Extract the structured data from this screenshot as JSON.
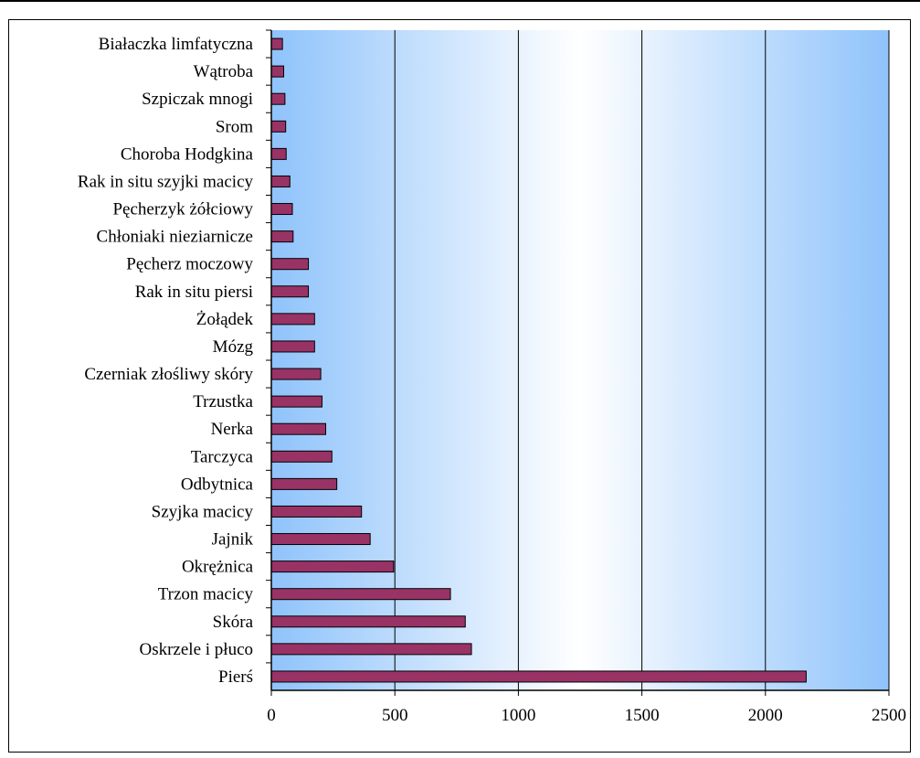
{
  "chart_data": {
    "type": "bar",
    "orientation": "horizontal",
    "categories": [
      "Białaczka limfatyczna",
      "Wątroba",
      "Szpiczak mnogi",
      "Srom",
      "Choroba Hodgkina",
      "Rak in situ szyjki macicy",
      "Pęcherzyk żółciowy",
      "Chłoniaki nieziarnicze",
      "Pęcherz moczowy",
      "Rak in situ piersi",
      "Żołądek",
      "Mózg",
      "Czerniak złośliwy skóry",
      "Trzustka",
      "Nerka",
      "Tarczyca",
      "Odbytnica",
      "Szyjka macicy",
      "Jajnik",
      "Okrężnica",
      "Trzon macicy",
      "Skóra",
      "Oskrzele i płuco",
      "Pierś"
    ],
    "values": [
      45,
      50,
      55,
      58,
      60,
      75,
      85,
      88,
      150,
      150,
      175,
      175,
      200,
      205,
      220,
      245,
      265,
      365,
      400,
      495,
      725,
      785,
      810,
      2165
    ],
    "xticks": [
      "0",
      "500",
      "1000",
      "1500",
      "2000",
      "2500"
    ],
    "xlim": [
      0,
      2500
    ],
    "title": "",
    "xlabel": "",
    "ylabel": "",
    "grid": "vertical",
    "legend": "none",
    "colors": {
      "bar_fill": "#993366",
      "bar_stroke": "#000000",
      "bg_edge": "#8fc3fb",
      "bg_center": "#ffffff",
      "grid": "#000000"
    }
  }
}
